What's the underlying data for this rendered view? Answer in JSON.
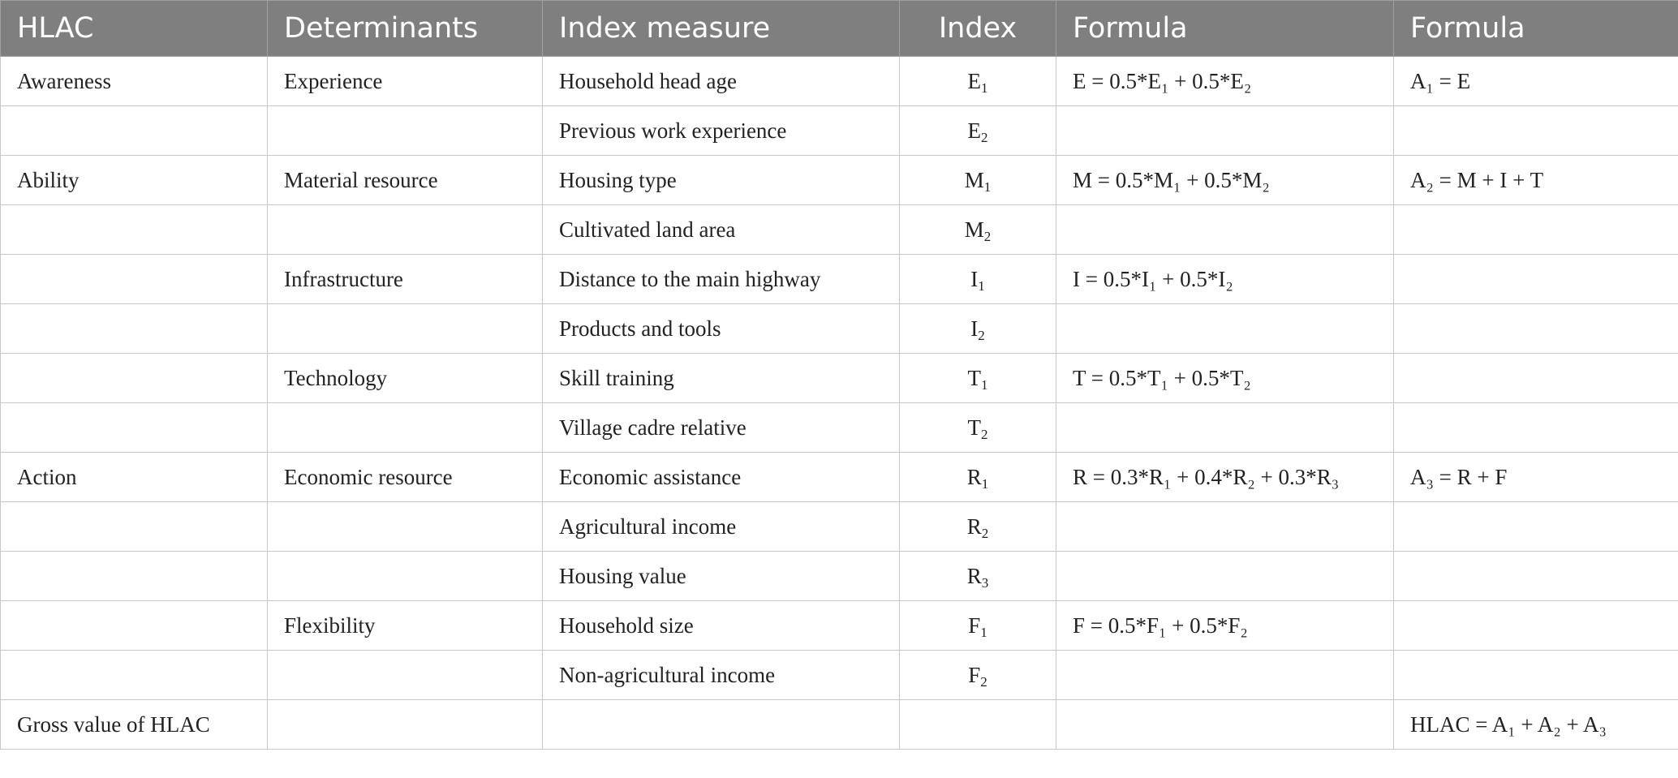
{
  "headers": [
    "HLAC",
    "Determinants",
    "Index measure",
    "Index",
    "Formula",
    "Formula"
  ],
  "rows": [
    {
      "hlac": "Awareness",
      "det": "Experience",
      "measure": "Household head age",
      "idx": [
        "E",
        "1"
      ],
      "f1": [
        [
          "E = 0.5*E",
          ""
        ],
        [
          "1",
          ""
        ],
        [
          " + 0.5*E",
          ""
        ],
        [
          "2",
          ""
        ]
      ],
      "f2": ""
    },
    {
      "hlac": "",
      "det": "",
      "measure": "Previous work experience",
      "idx": [
        "E",
        "2"
      ]
    },
    {
      "hlac": "Ability",
      "det": "Material resource",
      "measure": "Housing type",
      "idx": [
        "M",
        "1"
      ]
    },
    {
      "hlac": "",
      "det": "",
      "measure": "Cultivated land area",
      "idx": [
        "M",
        "2"
      ]
    },
    {
      "hlac": "",
      "det": "Infrastructure",
      "measure": "Distance to the main highway",
      "idx": [
        "I",
        "1"
      ]
    },
    {
      "hlac": "",
      "det": "",
      "measure": "Products and tools",
      "idx": [
        "I",
        "2"
      ]
    },
    {
      "hlac": "",
      "det": "Technology",
      "measure": "Skill training",
      "idx": [
        "T",
        "1"
      ]
    },
    {
      "hlac": "",
      "det": "",
      "measure": "Village cadre relative",
      "idx": [
        "T",
        "2"
      ]
    },
    {
      "hlac": "Action",
      "det": "Economic resource",
      "measure": "Economic assistance",
      "idx": [
        "R",
        "1"
      ]
    },
    {
      "hlac": "",
      "det": "",
      "measure": "Agricultural income",
      "idx": [
        "R",
        "2"
      ]
    },
    {
      "hlac": "",
      "det": "",
      "measure": "Housing value",
      "idx": [
        "R",
        "3"
      ]
    },
    {
      "hlac": "",
      "det": "Flexibility",
      "measure": "Household size",
      "idx": [
        "F",
        "1"
      ]
    },
    {
      "hlac": "",
      "det": "",
      "measure": "Non-agricultural income",
      "idx": [
        "F",
        "2"
      ]
    },
    {
      "hlac": "Gross value of HLAC",
      "det": "",
      "measure": "",
      "idx": [
        "",
        ""
      ]
    }
  ],
  "formulas": {
    "E": "E = 0.5*E₁ + 0.5*E₂",
    "M": "M = 0.5*M₁ + 0.5*M₂",
    "I": "I = 0.5*I₁ + 0.5*I₂",
    "T": "T = 0.5*T₁ + 0.5*T₂",
    "R": "R = 0.3*R₁ + 0.4*R₂ + 0.3*R₃",
    "F": "F = 0.5*F₁ + 0.5*F₂",
    "A1": "A₁ = E",
    "A2": "A₂ = M + I + T",
    "A3": "A₃ = R + F",
    "HLAC": "HLAC = A₁ + A₂ + A₃"
  }
}
